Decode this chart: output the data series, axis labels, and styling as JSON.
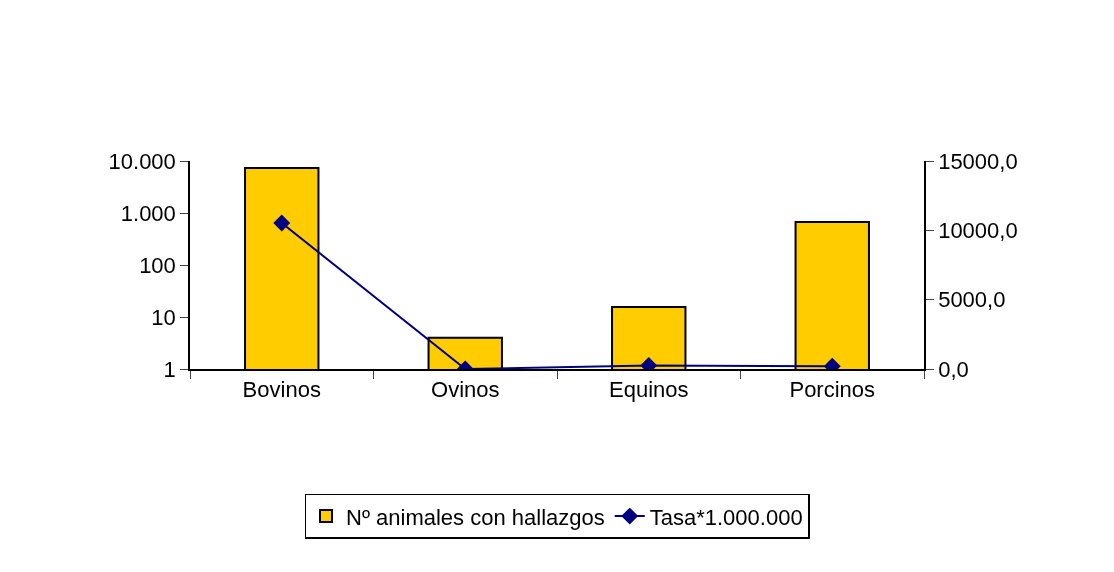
{
  "chart_data": {
    "type": "bar",
    "categories": [
      "Bovinos",
      "Ovinos",
      "Equinos",
      "Porcinos"
    ],
    "series": [
      {
        "name": "Nº animales con hallazgos",
        "color": "#ffcc00",
        "values": [
          7300,
          4,
          15.5,
          670
        ]
      },
      {
        "name": "Tasa*1.000.000",
        "type": "line",
        "axis": "y2",
        "color": "#000080",
        "marker": "diamond",
        "values": [
          10530,
          0,
          250,
          200
        ]
      }
    ],
    "log": "y",
    "ylim": [
      1,
      10000
    ],
    "yticks": [
      1,
      10,
      100,
      {
        "value": 1000,
        "label": "1.000"
      },
      {
        "value": 10000,
        "label": "10.000"
      }
    ],
    "y2lim": [
      0,
      15000
    ],
    "y2ticks": [
      {
        "value": 0,
        "label": "0,0"
      },
      {
        "value": 5000,
        "label": "5000,0"
      },
      {
        "value": 10000,
        "label": "10000,0"
      },
      {
        "value": 15000,
        "label": "15000,0"
      }
    ],
    "grid": false,
    "legend": "bottom"
  }
}
